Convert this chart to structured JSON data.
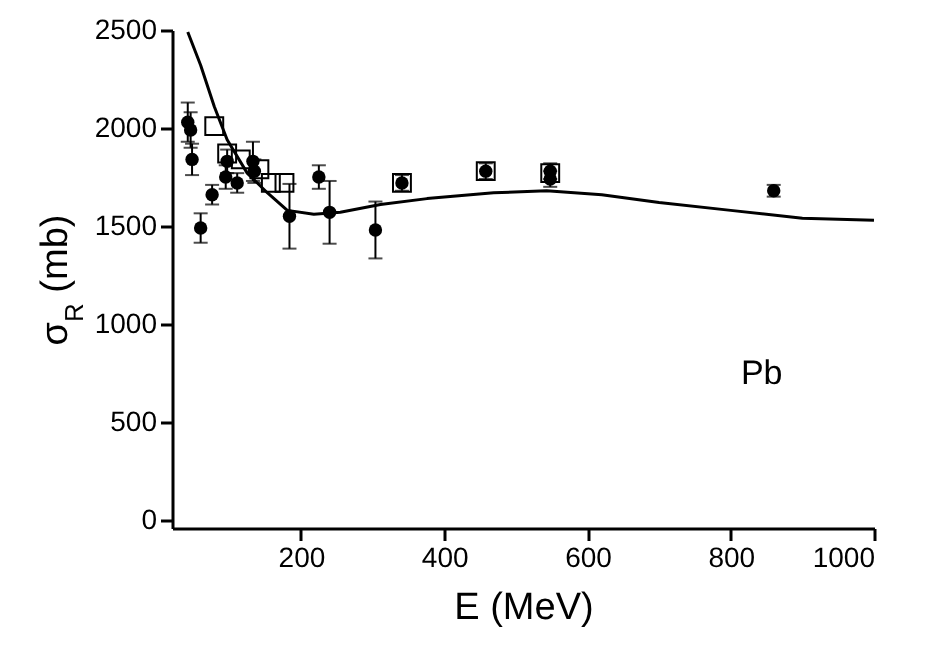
{
  "chart_data": {
    "type": "scatter",
    "xlabel": "E (MeV)",
    "ylabel": "σ$_{R}$ (mb)",
    "annotations": [
      "Pb"
    ],
    "xlim": [
      20,
      1000
    ],
    "ylim": [
      -40,
      2500
    ],
    "xticks": [
      200,
      400,
      600,
      800,
      1000
    ],
    "yticks": [
      0,
      500,
      1000,
      1500,
      2000,
      2500
    ],
    "series": [
      {
        "type": "line",
        "color": "#000000",
        "marker": "none",
        "x": [
          42,
          60,
          79,
          97,
          125,
          153,
          181,
          218,
          255,
          311,
          376,
          469,
          543,
          620,
          700,
          800,
          900,
          1000
        ],
        "values": [
          2490,
          2320,
          2110,
          1940,
          1770,
          1670,
          1580,
          1560,
          1570,
          1610,
          1640,
          1670,
          1680,
          1660,
          1620,
          1580,
          1540,
          1530
        ]
      },
      {
        "color": "#000000",
        "marker": "circle",
        "x": [
          42,
          46,
          48,
          60,
          76,
          95,
          97,
          111,
          133,
          135,
          184,
          225,
          240,
          304,
          341,
          458,
          548,
          548,
          860
        ],
        "values": [
          2030,
          1990,
          1840,
          1490,
          1660,
          1750,
          1830,
          1720,
          1830,
          1780,
          1550,
          1750,
          1570,
          1480,
          1720,
          1780,
          1780,
          1740,
          1680
        ],
        "errors": [
          100,
          90,
          80,
          75,
          50,
          60,
          60,
          50,
          100,
          60,
          165,
          60,
          160,
          145,
          40,
          40,
          40,
          40,
          30
        ]
      },
      {
        "color": "#000000",
        "marker": "square",
        "x": [
          79,
          97,
          116,
          142,
          158,
          177,
          341,
          458,
          548
        ],
        "values": [
          2010,
          1870,
          1840,
          1790,
          1720,
          1720,
          1720,
          1780,
          1770
        ]
      }
    ]
  }
}
